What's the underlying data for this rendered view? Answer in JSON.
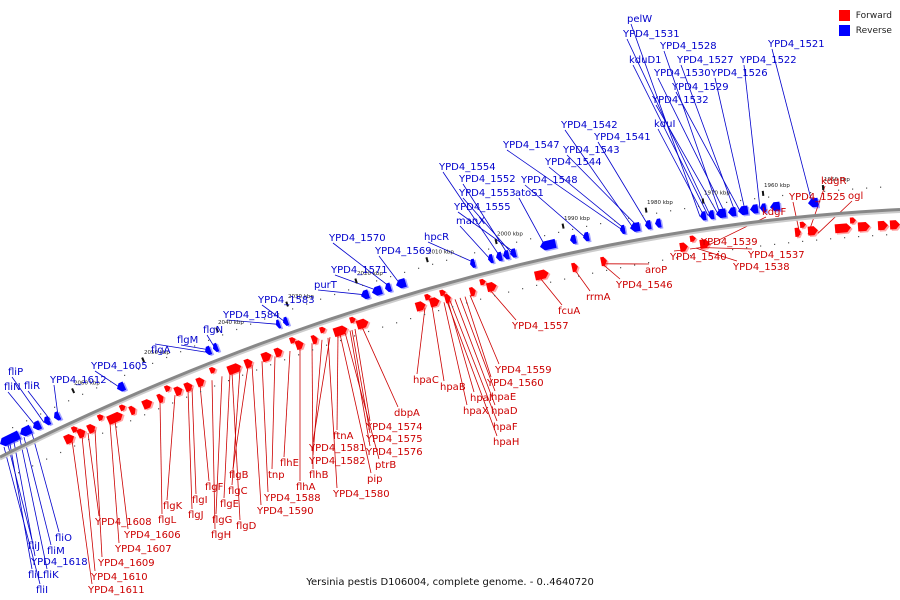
{
  "title": "Yersinia pestis D106004, complete genome. - 0..4640720",
  "colors": {
    "forward": "#ff0000",
    "reverse": "#0000ff",
    "forward_label": "#cc0000",
    "reverse_label": "#0000cc",
    "backbone": "#888888"
  },
  "legend": [
    {
      "label": "Forward",
      "color": "#ff0000"
    },
    {
      "label": "Reverse",
      "color": "#0000ff"
    }
  ],
  "kbp_ticks": [
    "1950 kbp",
    "1960 kbp",
    "1970 kbp",
    "1980 kbp",
    "1990 kbp",
    "2000 kbp",
    "2010 kbp",
    "2020 kbp",
    "2030 kbp",
    "2040 kbp",
    "2050 kbp",
    "2060 kbp"
  ],
  "reverse_genes_above": [
    "pelW",
    "YPD4_1531",
    "YPD4_1528",
    "kduD1",
    "YPD4_1527",
    "YPD4_1522",
    "YPD4_1521",
    "YPD4_1530",
    "YPD4_1526",
    "YPD4_1529",
    "YPD4_1532",
    "kduI",
    "YPD4_1542",
    "YPD4_1541",
    "YPD4_1547",
    "YPD4_1543",
    "YPD4_1544",
    "YPD4_1554",
    "YPD4_1548",
    "YPD4_1552",
    "atoS1",
    "YPD4_1553",
    "YPD4_1555",
    "manX",
    "hpcR",
    "YPD4_1570",
    "YPD4_1569",
    "YPD4_1571",
    "purT",
    "YPD4_1583",
    "YPD4_1584",
    "flgN",
    "flgM",
    "flgA",
    "YPD4_1605",
    "YPD4_1612",
    "fliP",
    "fliN",
    "fliR"
  ],
  "reverse_genes_below": [
    "fliO",
    "fliJ",
    "fliM",
    "YPD4_1618",
    "fliL",
    "fliK",
    "fliI"
  ],
  "forward_genes": [
    "kdgR",
    "ogl",
    "YPD4_1525",
    "kdgF",
    "YPD4_1539",
    "YPD4_1537",
    "YPD4_1540",
    "YPD4_1538",
    "aroP",
    "YPD4_1546",
    "rrmA",
    "fcuA",
    "YPD4_1557",
    "YPD4_1559",
    "hpaC",
    "YPD4_1560",
    "hpaB",
    "hpaE",
    "hpaI",
    "hpaX",
    "hpaD",
    "hpaF",
    "hpaH",
    "dbpA",
    "YPD4_1574",
    "ftnA",
    "YPD4_1575",
    "YPD4_1581",
    "YPD4_1576",
    "YPD4_1582",
    "ptrB",
    "pip",
    "flhE",
    "flhB",
    "YPD4_1580",
    "tnp",
    "flhA",
    "YPD4_1588",
    "flgB",
    "YPD4_1590",
    "flgC",
    "flgF",
    "flgE",
    "flgK",
    "flgI",
    "flgG",
    "flgJ",
    "flgL",
    "flgH",
    "flgD",
    "YPD4_1608",
    "YPD4_1606",
    "YPD4_1607",
    "YPD4_1609",
    "YPD4_1610",
    "YPD4_1611"
  ]
}
